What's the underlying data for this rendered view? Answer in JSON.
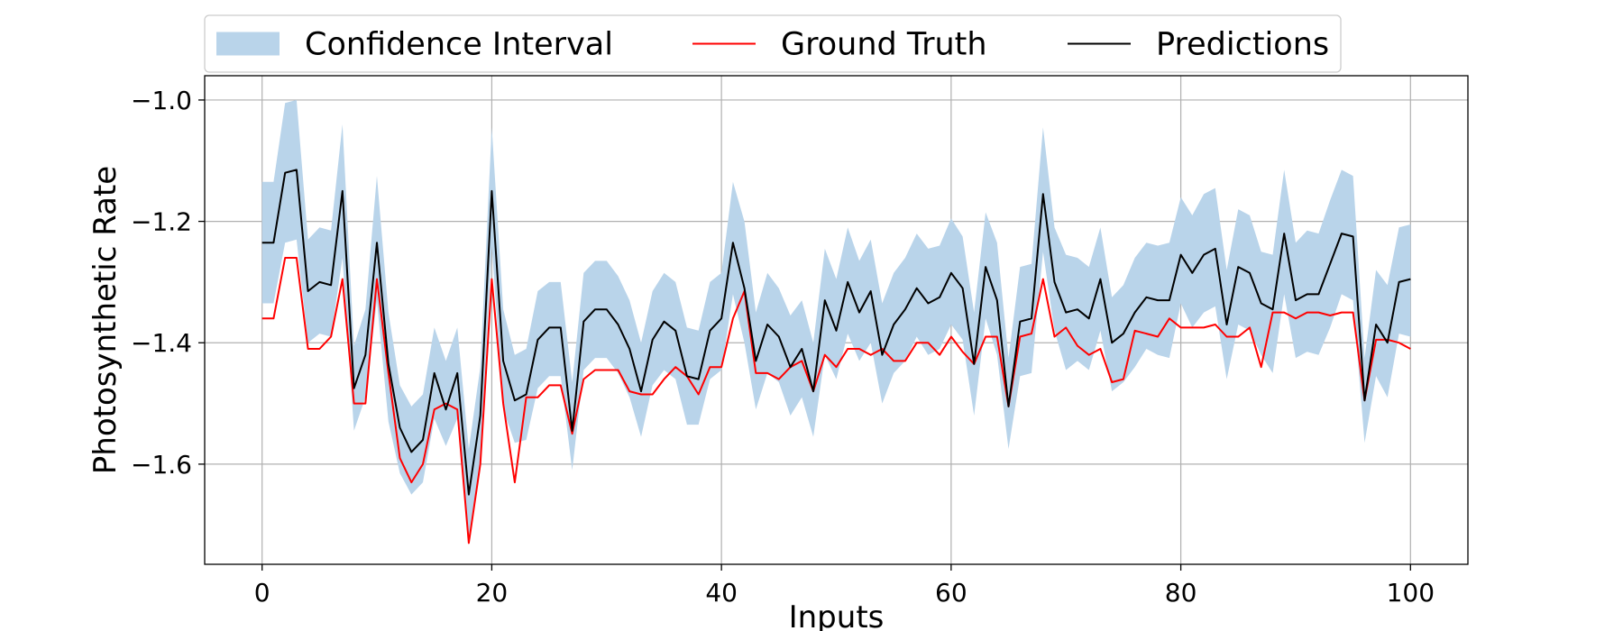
{
  "chart_data": {
    "type": "line",
    "xlabel": "Inputs",
    "ylabel": "Photosynthetic Rate",
    "xlim": [
      -5,
      105
    ],
    "ylim": [
      -1.765,
      -0.96
    ],
    "xticks": [
      0,
      20,
      40,
      60,
      80,
      100
    ],
    "yticks": [
      -1.6,
      -1.4,
      -1.2,
      -1.0
    ],
    "ytick_labels": [
      "−1.6",
      "−1.4",
      "−1.2",
      "−1.0"
    ],
    "grid": true,
    "legend_placement": "top-center",
    "colors": {
      "band": "#b9d4ea",
      "ground_truth": "#ff0000",
      "predictions": "#000000",
      "grid": "#b0b0b0"
    },
    "legend": [
      {
        "kind": "band",
        "label": "Confidence Interval"
      },
      {
        "kind": "ground_truth",
        "label": "Ground Truth"
      },
      {
        "kind": "predictions",
        "label": "Predictions"
      }
    ],
    "x": [
      0,
      1,
      2,
      3,
      4,
      5,
      6,
      7,
      8,
      9,
      10,
      11,
      12,
      13,
      14,
      15,
      16,
      17,
      18,
      19,
      20,
      21,
      22,
      23,
      24,
      25,
      26,
      27,
      28,
      29,
      30,
      31,
      32,
      33,
      34,
      35,
      36,
      37,
      38,
      39,
      40,
      41,
      42,
      43,
      44,
      45,
      46,
      47,
      48,
      49,
      50,
      51,
      52,
      53,
      54,
      55,
      56,
      57,
      58,
      59,
      60,
      61,
      62,
      63,
      64,
      65,
      66,
      67,
      68,
      69,
      70,
      71,
      72,
      73,
      74,
      75,
      76,
      77,
      78,
      79,
      80,
      81,
      82,
      83,
      84,
      85,
      86,
      87,
      88,
      89,
      90,
      91,
      92,
      93,
      94,
      95,
      96,
      97,
      98,
      99,
      100
    ],
    "series": [
      {
        "name": "Ground Truth",
        "values": [
          -1.36,
          -1.36,
          -1.26,
          -1.26,
          -1.41,
          -1.41,
          -1.39,
          -1.295,
          -1.5,
          -1.5,
          -1.295,
          -1.45,
          -1.59,
          -1.63,
          -1.6,
          -1.51,
          -1.5,
          -1.51,
          -1.73,
          -1.6,
          -1.295,
          -1.5,
          -1.63,
          -1.49,
          -1.49,
          -1.47,
          -1.47,
          -1.55,
          -1.46,
          -1.445,
          -1.445,
          -1.445,
          -1.48,
          -1.485,
          -1.485,
          -1.46,
          -1.44,
          -1.455,
          -1.485,
          -1.44,
          -1.44,
          -1.36,
          -1.315,
          -1.45,
          -1.45,
          -1.46,
          -1.44,
          -1.43,
          -1.48,
          -1.42,
          -1.44,
          -1.41,
          -1.41,
          -1.42,
          -1.41,
          -1.43,
          -1.43,
          -1.4,
          -1.4,
          -1.42,
          -1.39,
          -1.415,
          -1.435,
          -1.39,
          -1.39,
          -1.505,
          -1.39,
          -1.385,
          -1.295,
          -1.39,
          -1.375,
          -1.405,
          -1.42,
          -1.41,
          -1.465,
          -1.46,
          -1.38,
          -1.385,
          -1.39,
          -1.36,
          -1.375,
          -1.375,
          -1.375,
          -1.37,
          -1.39,
          -1.39,
          -1.375,
          -1.44,
          -1.35,
          -1.35,
          -1.36,
          -1.35,
          -1.35,
          -1.355,
          -1.35,
          -1.35,
          -1.495,
          -1.395,
          -1.395,
          -1.4,
          -1.41
        ]
      },
      {
        "name": "Predictions",
        "values": [
          -1.235,
          -1.235,
          -1.12,
          -1.115,
          -1.315,
          -1.3,
          -1.305,
          -1.15,
          -1.475,
          -1.42,
          -1.235,
          -1.435,
          -1.54,
          -1.58,
          -1.56,
          -1.45,
          -1.51,
          -1.45,
          -1.65,
          -1.52,
          -1.15,
          -1.43,
          -1.495,
          -1.485,
          -1.395,
          -1.375,
          -1.375,
          -1.545,
          -1.365,
          -1.345,
          -1.345,
          -1.37,
          -1.41,
          -1.48,
          -1.395,
          -1.365,
          -1.38,
          -1.455,
          -1.46,
          -1.38,
          -1.36,
          -1.235,
          -1.31,
          -1.43,
          -1.37,
          -1.39,
          -1.44,
          -1.41,
          -1.48,
          -1.33,
          -1.38,
          -1.3,
          -1.35,
          -1.315,
          -1.42,
          -1.37,
          -1.345,
          -1.31,
          -1.335,
          -1.325,
          -1.285,
          -1.31,
          -1.435,
          -1.275,
          -1.33,
          -1.505,
          -1.365,
          -1.36,
          -1.155,
          -1.3,
          -1.35,
          -1.345,
          -1.36,
          -1.295,
          -1.4,
          -1.385,
          -1.35,
          -1.325,
          -1.33,
          -1.33,
          -1.255,
          -1.285,
          -1.255,
          -1.245,
          -1.37,
          -1.275,
          -1.285,
          -1.335,
          -1.345,
          -1.22,
          -1.33,
          -1.32,
          -1.32,
          -1.27,
          -1.22,
          -1.225,
          -1.495,
          -1.37,
          -1.4,
          -1.3,
          -1.295
        ]
      },
      {
        "name": "Confidence Interval",
        "lower": [
          -1.335,
          -1.335,
          -1.235,
          -1.23,
          -1.4,
          -1.385,
          -1.39,
          -1.26,
          -1.545,
          -1.49,
          -1.33,
          -1.53,
          -1.615,
          -1.65,
          -1.63,
          -1.525,
          -1.57,
          -1.525,
          -1.72,
          -1.6,
          -1.24,
          -1.51,
          -1.565,
          -1.56,
          -1.475,
          -1.455,
          -1.455,
          -1.61,
          -1.445,
          -1.425,
          -1.425,
          -1.45,
          -1.49,
          -1.555,
          -1.47,
          -1.445,
          -1.46,
          -1.535,
          -1.535,
          -1.46,
          -1.445,
          -1.32,
          -1.4,
          -1.51,
          -1.45,
          -1.465,
          -1.52,
          -1.49,
          -1.555,
          -1.42,
          -1.46,
          -1.385,
          -1.43,
          -1.4,
          -1.5,
          -1.45,
          -1.43,
          -1.39,
          -1.42,
          -1.41,
          -1.37,
          -1.395,
          -1.52,
          -1.36,
          -1.42,
          -1.575,
          -1.455,
          -1.45,
          -1.25,
          -1.38,
          -1.445,
          -1.43,
          -1.445,
          -1.38,
          -1.48,
          -1.465,
          -1.44,
          -1.41,
          -1.42,
          -1.425,
          -1.335,
          -1.375,
          -1.35,
          -1.34,
          -1.46,
          -1.37,
          -1.38,
          -1.42,
          -1.45,
          -1.32,
          -1.425,
          -1.415,
          -1.42,
          -1.375,
          -1.32,
          -1.33,
          -1.565,
          -1.455,
          -1.49,
          -1.385,
          -1.39
        ],
        "upper": [
          -1.135,
          -1.135,
          -1.005,
          -1.0,
          -1.23,
          -1.21,
          -1.215,
          -1.04,
          -1.405,
          -1.345,
          -1.125,
          -1.35,
          -1.47,
          -1.505,
          -1.485,
          -1.375,
          -1.43,
          -1.375,
          -1.575,
          -1.44,
          -1.045,
          -1.345,
          -1.42,
          -1.41,
          -1.315,
          -1.3,
          -1.3,
          -1.465,
          -1.285,
          -1.265,
          -1.265,
          -1.29,
          -1.33,
          -1.4,
          -1.315,
          -1.285,
          -1.3,
          -1.375,
          -1.38,
          -1.3,
          -1.285,
          -1.135,
          -1.2,
          -1.35,
          -1.285,
          -1.31,
          -1.355,
          -1.33,
          -1.4,
          -1.245,
          -1.295,
          -1.21,
          -1.265,
          -1.23,
          -1.335,
          -1.285,
          -1.26,
          -1.22,
          -1.245,
          -1.24,
          -1.195,
          -1.225,
          -1.35,
          -1.185,
          -1.235,
          -1.425,
          -1.275,
          -1.27,
          -1.045,
          -1.21,
          -1.255,
          -1.26,
          -1.275,
          -1.21,
          -1.325,
          -1.305,
          -1.26,
          -1.235,
          -1.24,
          -1.235,
          -1.16,
          -1.19,
          -1.155,
          -1.145,
          -1.28,
          -1.18,
          -1.19,
          -1.25,
          -1.255,
          -1.115,
          -1.235,
          -1.215,
          -1.22,
          -1.165,
          -1.115,
          -1.125,
          -1.425,
          -1.28,
          -1.305,
          -1.21,
          -1.205
        ]
      }
    ]
  }
}
